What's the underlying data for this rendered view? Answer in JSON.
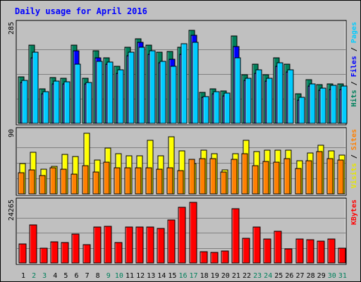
{
  "chart_data": [
    {
      "type": "bar",
      "title": "Daily usage for April 2016",
      "panel": "top",
      "categories": [
        "1",
        "2",
        "3",
        "4",
        "5",
        "6",
        "7",
        "8",
        "9",
        "10",
        "11",
        "12",
        "13",
        "14",
        "15",
        "16",
        "17",
        "18",
        "19",
        "20",
        "21",
        "22",
        "23",
        "24",
        "25",
        "26",
        "27",
        "28",
        "29",
        "30",
        "31"
      ],
      "weekend_days": [
        "2",
        "3",
        "9",
        "10",
        "16",
        "17",
        "23",
        "24",
        "30",
        "31"
      ],
      "ymax_label": "285",
      "ylim": [
        0,
        285
      ],
      "right_labels": [
        {
          "text": "Hits",
          "color": "#00805c"
        },
        {
          "text": " / ",
          "color": "#000000"
        },
        {
          "text": "Files",
          "color": "#0000ff"
        },
        {
          "text": " / ",
          "color": "#000000"
        },
        {
          "text": "Pages",
          "color": "#00ccff"
        }
      ],
      "series": [
        {
          "name": "Hits",
          "color": "#00805c",
          "values": [
            135,
            225,
            100,
            133,
            130,
            225,
            130,
            210,
            190,
            165,
            220,
            245,
            225,
            205,
            208,
            220,
            268,
            90,
            100,
            93,
            252,
            140,
            170,
            140,
            190,
            170,
            85,
            127,
            112,
            115,
            115
          ]
        },
        {
          "name": "Files",
          "color": "#0000ff",
          "values": [
            118,
            190,
            85,
            113,
            115,
            210,
            115,
            190,
            170,
            145,
            196,
            235,
            200,
            175,
            185,
            200,
            255,
            75,
            85,
            80,
            222,
            125,
            145,
            123,
            165,
            148,
            68,
            108,
            96,
            97,
            97
          ]
        },
        {
          "name": "Pages",
          "color": "#00ccff",
          "values": [
            125,
            205,
            92,
            122,
            120,
            170,
            118,
            180,
            178,
            155,
            205,
            220,
            210,
            180,
            165,
            230,
            235,
            78,
            92,
            88,
            190,
            130,
            155,
            130,
            175,
            155,
            75,
            115,
            102,
            110,
            108
          ]
        }
      ]
    },
    {
      "type": "bar",
      "panel": "middle",
      "categories": [
        "1",
        "2",
        "3",
        "4",
        "5",
        "6",
        "7",
        "8",
        "9",
        "10",
        "11",
        "12",
        "13",
        "14",
        "15",
        "16",
        "17",
        "18",
        "19",
        "20",
        "21",
        "22",
        "23",
        "24",
        "25",
        "26",
        "27",
        "28",
        "29",
        "30",
        "31"
      ],
      "ymax_label": "90",
      "ylim": [
        0,
        90
      ],
      "right_labels": [
        {
          "text": "Visits",
          "color": "#e6e600"
        },
        {
          "text": " / ",
          "color": "#000000"
        },
        {
          "text": "Sites",
          "color": "#ff8000"
        }
      ],
      "series": [
        {
          "name": "Visits",
          "color": "#ffff00",
          "values": [
            44,
            60,
            36,
            40,
            57,
            54,
            88,
            49,
            66,
            58,
            55,
            55,
            78,
            55,
            83,
            62,
            44,
            63,
            58,
            35,
            58,
            78,
            61,
            63,
            63,
            63,
            48,
            59,
            71,
            62,
            56
          ]
        },
        {
          "name": "Sites",
          "color": "#ff8000",
          "values": [
            31,
            35,
            27,
            38,
            36,
            29,
            41,
            32,
            46,
            38,
            38,
            38,
            38,
            36,
            38,
            34,
            50,
            51,
            51,
            32,
            50,
            58,
            41,
            47,
            46,
            51,
            37,
            48,
            61,
            51,
            49
          ]
        }
      ]
    },
    {
      "type": "bar",
      "panel": "bottom",
      "categories": [
        "1",
        "2",
        "3",
        "4",
        "5",
        "6",
        "7",
        "8",
        "9",
        "10",
        "11",
        "12",
        "13",
        "14",
        "15",
        "16",
        "17",
        "18",
        "19",
        "20",
        "21",
        "22",
        "23",
        "24",
        "25",
        "26",
        "27",
        "28",
        "29",
        "30",
        "31"
      ],
      "ymax_label": "24265",
      "ylim": [
        0,
        24265
      ],
      "right_labels": [
        {
          "text": "KBytes",
          "color": "#ff0000"
        }
      ],
      "series": [
        {
          "name": "KBytes",
          "color": "#ff0000",
          "values": [
            7600,
            15200,
            5900,
            8400,
            8300,
            11700,
            7300,
            14300,
            14700,
            8200,
            14500,
            14500,
            14500,
            13900,
            17300,
            22200,
            24265,
            4500,
            4200,
            4800,
            21600,
            9800,
            14500,
            9700,
            12800,
            5700,
            9700,
            9200,
            8800,
            9600,
            5800
          ]
        }
      ]
    }
  ],
  "colors": {
    "background": "#c0c0c0",
    "title": "#0000ff",
    "weekday_label": "#000000",
    "weekend_label": "#00805c"
  }
}
